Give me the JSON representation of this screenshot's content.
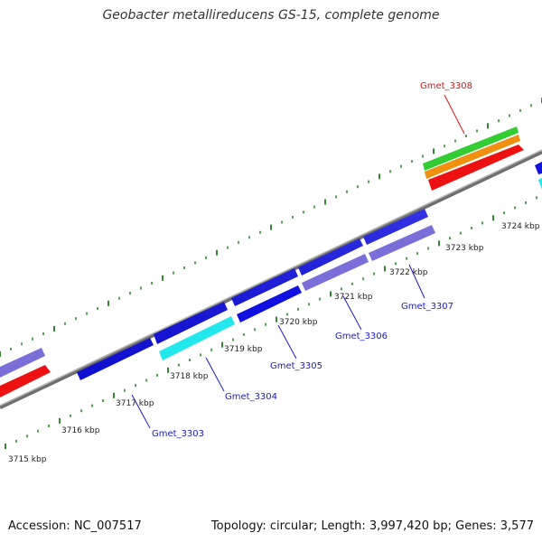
{
  "title": "Geobacter metallireducens GS-15, complete genome",
  "footer": {
    "accession": "Accession: NC_007517",
    "summary": "Topology: circular; Length: 3,997,420 bp; Genes: 3,577"
  },
  "colors": {
    "backbone": "#888888",
    "tick": "#2e8b2e",
    "label_blue": "#1a1acc",
    "label_red": "#dd1111",
    "gene_blue": "#1010e0",
    "gene_purple": "#7a6fd8",
    "gene_cyan": "#22e8ee",
    "gene_red": "#ee1111",
    "gene_green": "#33cc33",
    "gene_orange": "#f09010"
  },
  "track": {
    "tick_labels": [
      "3715 kbp",
      "3716 kbp",
      "3717 kbp",
      "3718 kbp",
      "3719 kbp",
      "3720 kbp",
      "3721 kbp",
      "3722 kbp",
      "3723 kbp",
      "3724 kbp"
    ]
  },
  "genes": {
    "labels": [
      "Gmet_3303",
      "Gmet_3304",
      "Gmet_3305",
      "Gmet_3306",
      "Gmet_3307",
      "Gmet_3308"
    ]
  }
}
